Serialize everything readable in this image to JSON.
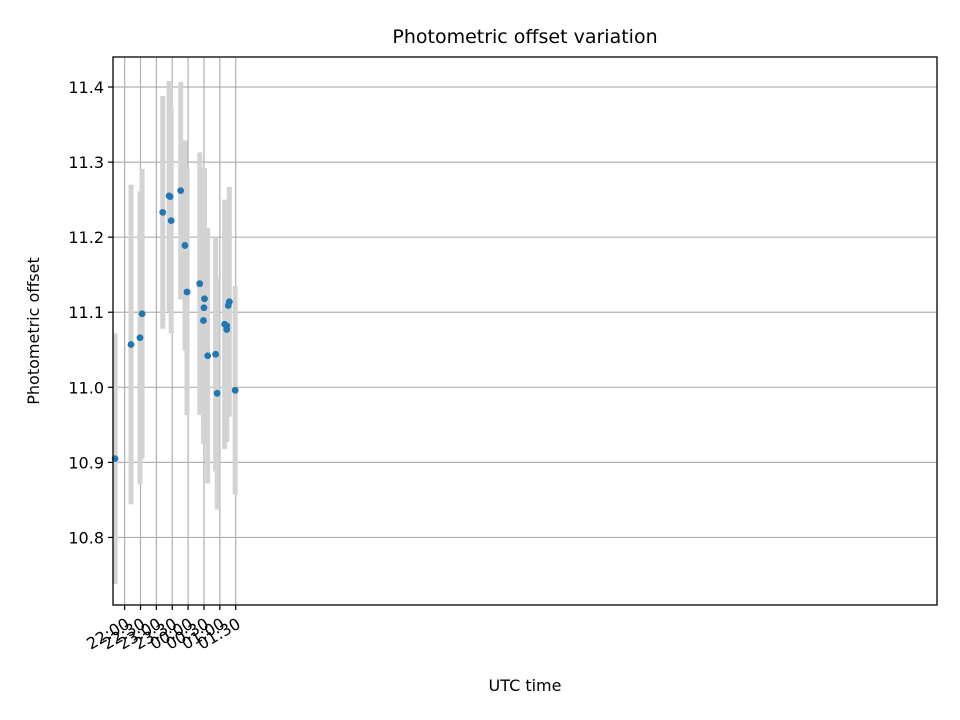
{
  "chart_data": {
    "type": "scatter",
    "title": "Photometric offset variation",
    "xlabel": "UTC time",
    "ylabel": "Photometric offset",
    "x_axis_kind": "time",
    "xlim": [
      "21:38",
      "23:36 +1d"
    ],
    "ylim": [
      10.71,
      11.44
    ],
    "x_ticks": [
      "22:00",
      "22:30",
      "23:00",
      "23:30",
      "00:00",
      "00:30",
      "01:00",
      "01:30"
    ],
    "y_ticks": [
      10.8,
      10.9,
      11.0,
      11.1,
      11.2,
      11.3,
      11.4
    ],
    "grid": true,
    "colors": {
      "point": "#1f77b4",
      "errorbar": "#d3d3d3",
      "grid": "#b0b0b0"
    },
    "points": [
      {
        "x": "21:42",
        "y": 10.905,
        "err": 0.167
      },
      {
        "x": "22:12",
        "y": 11.057,
        "err": 0.213
      },
      {
        "x": "22:29",
        "y": 11.066,
        "err": 0.195
      },
      {
        "x": "22:33",
        "y": 11.098,
        "err": 0.193
      },
      {
        "x": "23:12",
        "y": 11.233,
        "err": 0.155
      },
      {
        "x": "23:24",
        "y": 11.255,
        "err": 0.153
      },
      {
        "x": "23:26",
        "y": 11.254,
        "err": 0.153
      },
      {
        "x": "23:28",
        "y": 11.222,
        "err": 0.15
      },
      {
        "x": "23:46",
        "y": 11.262,
        "err": 0.145
      },
      {
        "x": "23:54",
        "y": 11.189,
        "err": 0.14
      },
      {
        "x": "23:58",
        "y": 11.127,
        "err": 0.164
      },
      {
        "x": "00:22",
        "y": 11.138,
        "err": 0.175
      },
      {
        "x": "00:29",
        "y": 11.089,
        "err": 0.164
      },
      {
        "x": "00:30",
        "y": 11.106,
        "err": 0.16
      },
      {
        "x": "00:31",
        "y": 11.118,
        "err": 0.174
      },
      {
        "x": "00:37",
        "y": 11.042,
        "err": 0.17
      },
      {
        "x": "00:52",
        "y": 11.044,
        "err": 0.156
      },
      {
        "x": "00:55",
        "y": 10.992,
        "err": 0.155
      },
      {
        "x": "01:09",
        "y": 11.084,
        "err": 0.166
      },
      {
        "x": "01:13",
        "y": 11.077,
        "err": 0.145
      },
      {
        "x": "01:13",
        "y": 11.082,
        "err": 0.155
      },
      {
        "x": "01:16",
        "y": 11.109,
        "err": 0.138
      },
      {
        "x": "01:18",
        "y": 11.114,
        "err": 0.153
      },
      {
        "x": "01:29",
        "y": 10.996,
        "err": 0.139
      }
    ]
  }
}
